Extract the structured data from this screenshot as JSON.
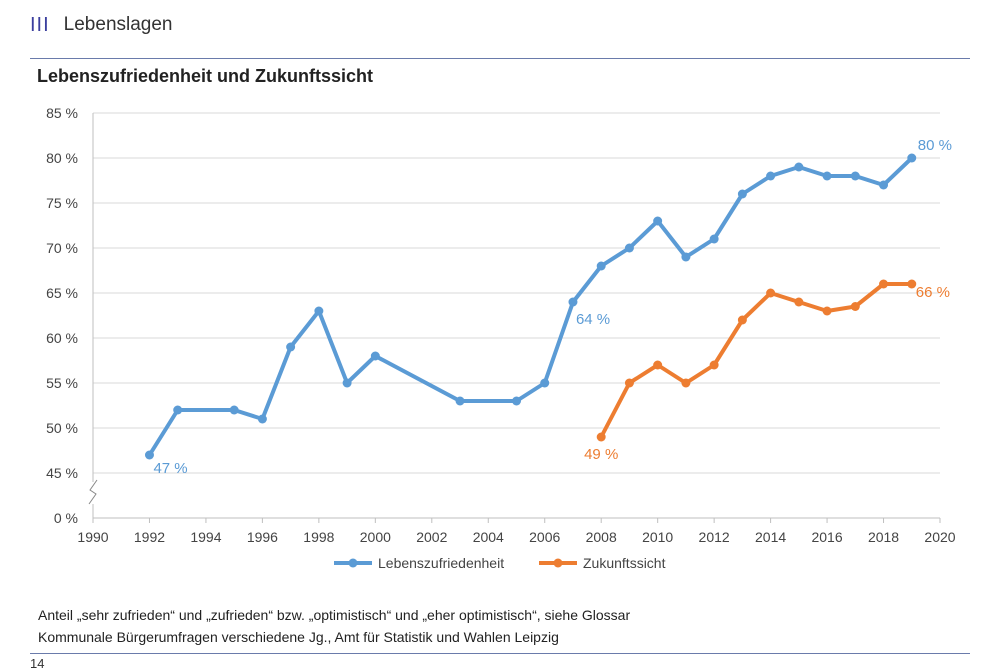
{
  "header": {
    "section_mark": "III",
    "section_title": "Lebenslagen"
  },
  "chart_data": {
    "type": "line",
    "title": "Lebenszufriedenheit und Zukunftssicht",
    "xlabel": "",
    "ylabel": "",
    "xlim": [
      1990,
      2020
    ],
    "x_ticks": [
      "1990",
      "1992",
      "1994",
      "1996",
      "1998",
      "2000",
      "2002",
      "2004",
      "2006",
      "2008",
      "2010",
      "2012",
      "2014",
      "2016",
      "2018",
      "2020"
    ],
    "y_ticks": [
      "0 %",
      "45 %",
      "50 %",
      "55 %",
      "60 %",
      "65 %",
      "70 %",
      "75 %",
      "80 %",
      "85 %"
    ],
    "y_tick_values": [
      0,
      45,
      50,
      55,
      60,
      65,
      70,
      75,
      80,
      85
    ],
    "axis_break": "0-45",
    "series": [
      {
        "name": "Lebenszufriedenheit",
        "color": "#5b9bd5",
        "x": [
          1992,
          1993,
          1995,
          1996,
          1997,
          1998,
          1999,
          2000,
          2003,
          2005,
          2006,
          2007,
          2008,
          2009,
          2010,
          2011,
          2012,
          2013,
          2014,
          2015,
          2016,
          2017,
          2018,
          2019
        ],
        "y": [
          47,
          52,
          52,
          51,
          59,
          63,
          55,
          58,
          53,
          53,
          55,
          64,
          68,
          70,
          73,
          69,
          71,
          76,
          78,
          79,
          78,
          78,
          77,
          80
        ],
        "labels": [
          {
            "x": 1992,
            "y": 47,
            "text": "47 %"
          },
          {
            "x": 2007,
            "y": 64,
            "text": "64 %"
          },
          {
            "x": 2019,
            "y": 80,
            "text": "80 %"
          }
        ]
      },
      {
        "name": "Zukunftssicht",
        "color": "#ed7d31",
        "x": [
          2008,
          2009,
          2010,
          2011,
          2012,
          2013,
          2014,
          2015,
          2016,
          2017,
          2018,
          2019
        ],
        "y": [
          49,
          55,
          57,
          55,
          57,
          62,
          65,
          64,
          63,
          63.5,
          66,
          66
        ],
        "labels": [
          {
            "x": 2008,
            "y": 49,
            "text": "49 %"
          },
          {
            "x": 2019,
            "y": 66,
            "text": "66 %"
          }
        ]
      }
    ],
    "legend": "bottom-center",
    "grid": true
  },
  "footer": {
    "note_line1": "Anteil „sehr zufrieden“ und „zufrieden“ bzw. „optimistisch“ und „eher optimistisch“, siehe Glossar",
    "note_line2": "Kommunale Bürgerumfragen verschiedene Jg., Amt für Statistik und Wahlen Leipzig",
    "page_number": "14"
  }
}
